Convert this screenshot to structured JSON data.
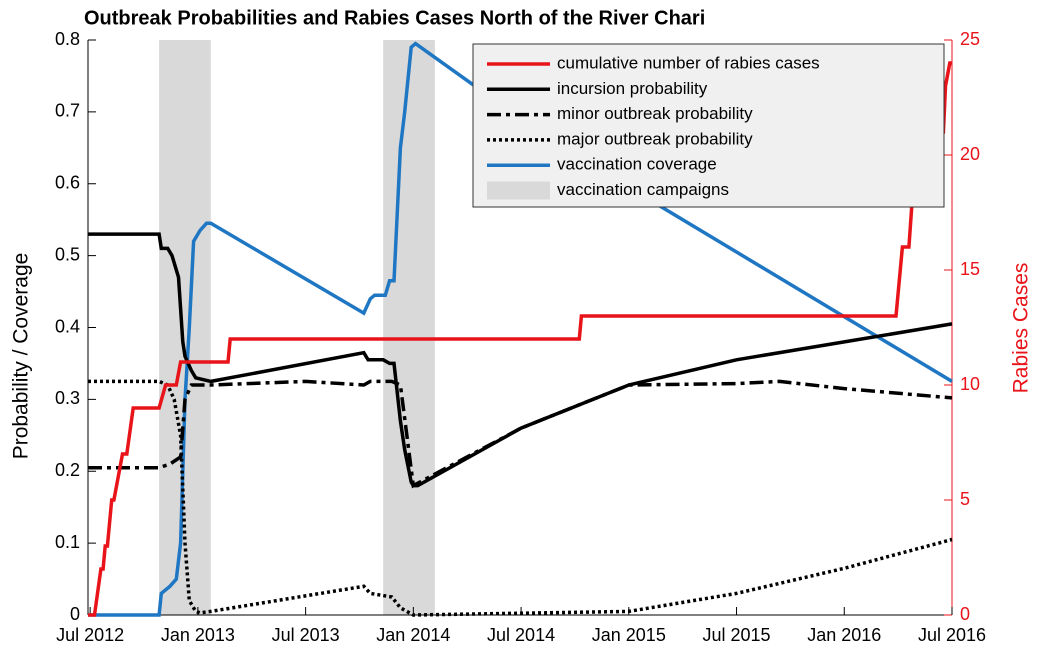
{
  "chart_data": {
    "type": "line",
    "title": "Outbreak Probabilities and Rabies Cases North of the River Chari",
    "ylabel": "Probability / Coverage",
    "y2label": "Rabies Cases",
    "xlim": [
      2012.49,
      2016.5
    ],
    "xticks": [
      {
        "value": 2012.5,
        "label": "Jul 2012"
      },
      {
        "value": 2013.0,
        "label": "Jan 2013"
      },
      {
        "value": 2013.5,
        "label": "Jul 2013"
      },
      {
        "value": 2014.0,
        "label": "Jan 2014"
      },
      {
        "value": 2014.5,
        "label": "Jul 2014"
      },
      {
        "value": 2015.0,
        "label": "Jan 2015"
      },
      {
        "value": 2015.5,
        "label": "Jul 2015"
      },
      {
        "value": 2016.0,
        "label": "Jan 2016"
      },
      {
        "value": 2016.5,
        "label": "Jul 2016"
      }
    ],
    "ylim": [
      0,
      0.8
    ],
    "yticks": [
      0,
      0.1,
      0.2,
      0.3,
      0.4,
      0.5,
      0.6,
      0.7,
      0.8
    ],
    "y2lim": [
      0,
      25
    ],
    "y2ticks": [
      0,
      5,
      10,
      15,
      20,
      25
    ],
    "y2color": "#e8141a",
    "legend": "top-right",
    "shaded": {
      "name": "vaccination campaigns",
      "color": "#d9d9d9",
      "spans": [
        [
          2012.82,
          2013.06
        ],
        [
          2013.86,
          2014.1
        ]
      ]
    },
    "series": [
      {
        "name": "cumulative number of rabies cases",
        "color": "#e8141a",
        "linestyle": "solid",
        "axis": "y2",
        "x": [
          2012.49,
          2012.52,
          2012.55,
          2012.56,
          2012.57,
          2012.58,
          2012.6,
          2012.61,
          2012.65,
          2012.67,
          2012.7,
          2012.82,
          2012.85,
          2012.9,
          2012.92,
          2013.14,
          2013.15,
          2014.77,
          2014.78,
          2016.24,
          2016.27,
          2016.3,
          2016.33,
          2016.39,
          2016.4,
          2016.46,
          2016.47,
          2016.49,
          2016.5
        ],
        "values": [
          0,
          0,
          2,
          2,
          3,
          3,
          5,
          5,
          7,
          7,
          9,
          9,
          10,
          10,
          11,
          11,
          12,
          12,
          13,
          13,
          16,
          16,
          20,
          20,
          21,
          21,
          23,
          24,
          24
        ]
      },
      {
        "name": "incursion probability",
        "color": "#000000",
        "linestyle": "solid",
        "x": [
          2012.49,
          2012.82,
          2012.83,
          2012.86,
          2012.88,
          2012.91,
          2012.93,
          2012.94,
          2012.97,
          2012.99,
          2013.06,
          2013.77,
          2013.79,
          2013.86,
          2013.89,
          2013.91,
          2013.94,
          2013.96,
          2013.99,
          2014.0,
          2014.02,
          2014.5,
          2015.0,
          2015.5,
          2016.0,
          2016.5
        ],
        "values": [
          0.53,
          0.53,
          0.51,
          0.51,
          0.5,
          0.47,
          0.38,
          0.36,
          0.34,
          0.33,
          0.325,
          0.365,
          0.355,
          0.355,
          0.35,
          0.35,
          0.27,
          0.23,
          0.185,
          0.18,
          0.18,
          0.26,
          0.32,
          0.355,
          0.38,
          0.405
        ]
      },
      {
        "name": "minor outbreak probability",
        "color": "#000000",
        "linestyle": "dashdot",
        "x": [
          2012.49,
          2012.82,
          2012.87,
          2012.92,
          2012.94,
          2012.97,
          2013.06,
          2013.5,
          2013.77,
          2013.8,
          2013.9,
          2013.94,
          2014.0,
          2014.5,
          2015.0,
          2015.5,
          2015.7,
          2016.0,
          2016.5
        ],
        "values": [
          0.205,
          0.205,
          0.21,
          0.22,
          0.3,
          0.32,
          0.32,
          0.325,
          0.32,
          0.325,
          0.325,
          0.32,
          0.18,
          0.26,
          0.32,
          0.322,
          0.325,
          0.315,
          0.302
        ]
      },
      {
        "name": "major outbreak probability",
        "color": "#000000",
        "linestyle": "dotted",
        "x": [
          2012.49,
          2012.82,
          2012.86,
          2012.89,
          2012.92,
          2012.94,
          2012.96,
          2012.99,
          2013.01,
          2013.06,
          2013.77,
          2013.8,
          2013.9,
          2013.94,
          2014.0,
          2015.0,
          2015.5,
          2016.0,
          2016.5
        ],
        "values": [
          0.325,
          0.325,
          0.32,
          0.3,
          0.25,
          0.1,
          0.02,
          0.005,
          0.003,
          0.005,
          0.04,
          0.03,
          0.025,
          0.01,
          0,
          0.005,
          0.03,
          0.065,
          0.105
        ]
      },
      {
        "name": "vaccination coverage",
        "color": "#1f77c4",
        "linestyle": "solid",
        "x": [
          2012.49,
          2012.82,
          2012.83,
          2012.87,
          2012.9,
          2012.92,
          2012.94,
          2012.96,
          2012.98,
          2013.01,
          2013.04,
          2013.06,
          2013.77,
          2013.8,
          2013.82,
          2013.87,
          2013.89,
          2013.91,
          2013.94,
          2013.96,
          2013.99,
          2014.01,
          2014.5,
          2015.0,
          2015.5,
          2016.0,
          2016.5
        ],
        "values": [
          0,
          0,
          0.03,
          0.04,
          0.05,
          0.1,
          0.3,
          0.4,
          0.52,
          0.535,
          0.545,
          0.545,
          0.42,
          0.44,
          0.445,
          0.445,
          0.465,
          0.465,
          0.65,
          0.7,
          0.79,
          0.795,
          0.69,
          0.595,
          0.505,
          0.415,
          0.325
        ]
      }
    ]
  }
}
